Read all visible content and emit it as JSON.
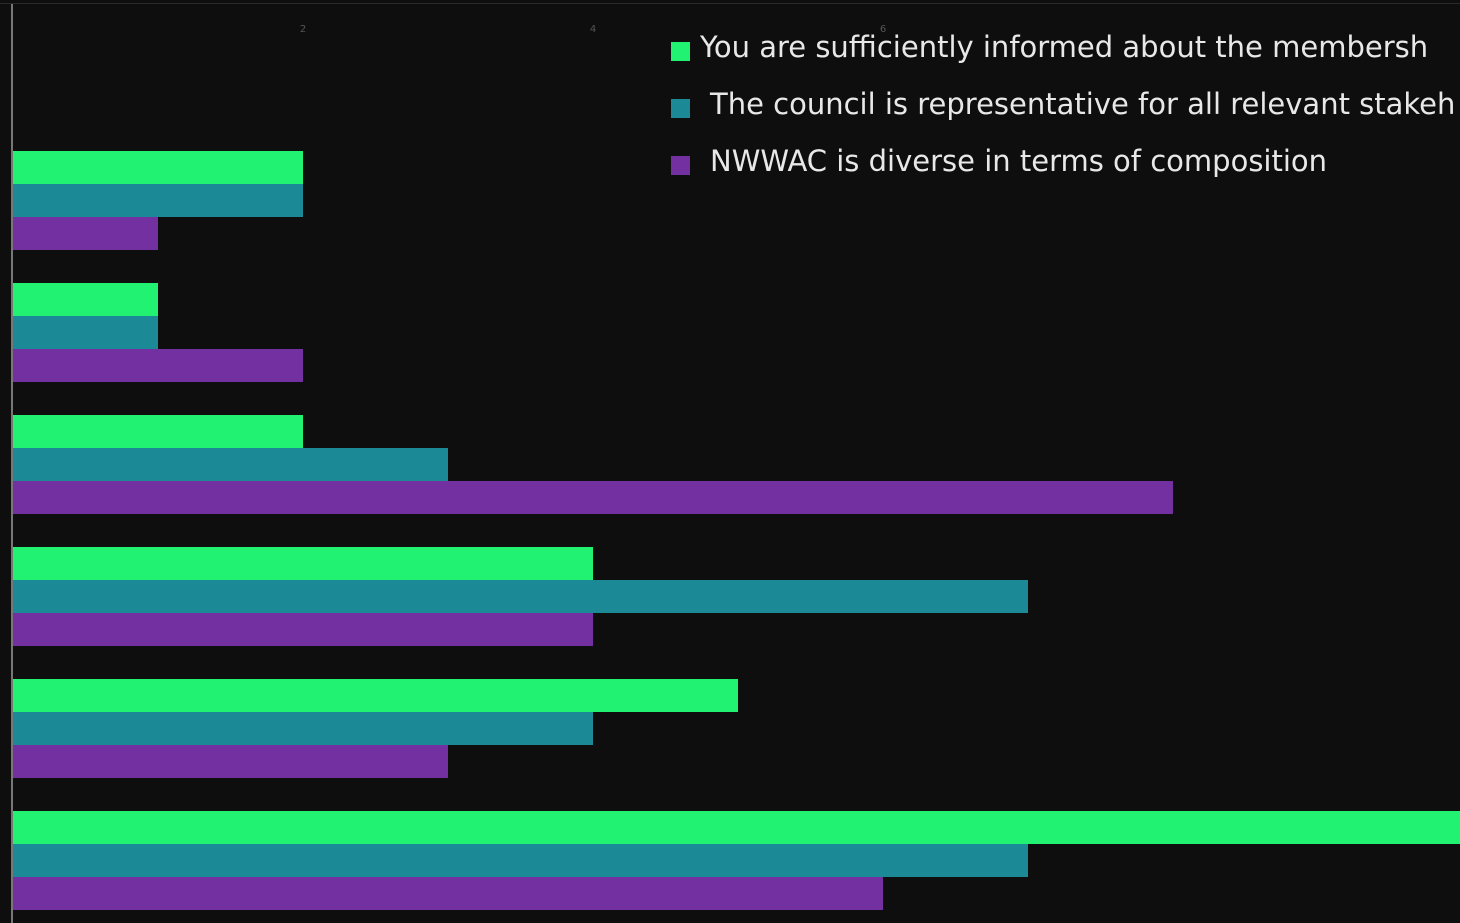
{
  "chart_data": {
    "type": "hbar",
    "categories": [
      null,
      null,
      null,
      null,
      null,
      null
    ],
    "series": [
      {
        "name": "You are sufficiently informed about the membersh",
        "color": "#22f272",
        "values": [
          2,
          1,
          2,
          4,
          5,
          10
        ]
      },
      {
        "name": "The council is representative for all relevant stakeh",
        "color": "#1b8a96",
        "values": [
          2,
          1,
          3,
          7,
          4,
          7
        ]
      },
      {
        "name": "NWWAC is diverse in terms of composition",
        "color": "#7230a0",
        "values": [
          1,
          2,
          8,
          4,
          3,
          6
        ]
      }
    ],
    "xlim": [
      0,
      10
    ],
    "xticks": [
      2,
      4,
      6
    ],
    "grid": false,
    "legend": "top-right"
  }
}
